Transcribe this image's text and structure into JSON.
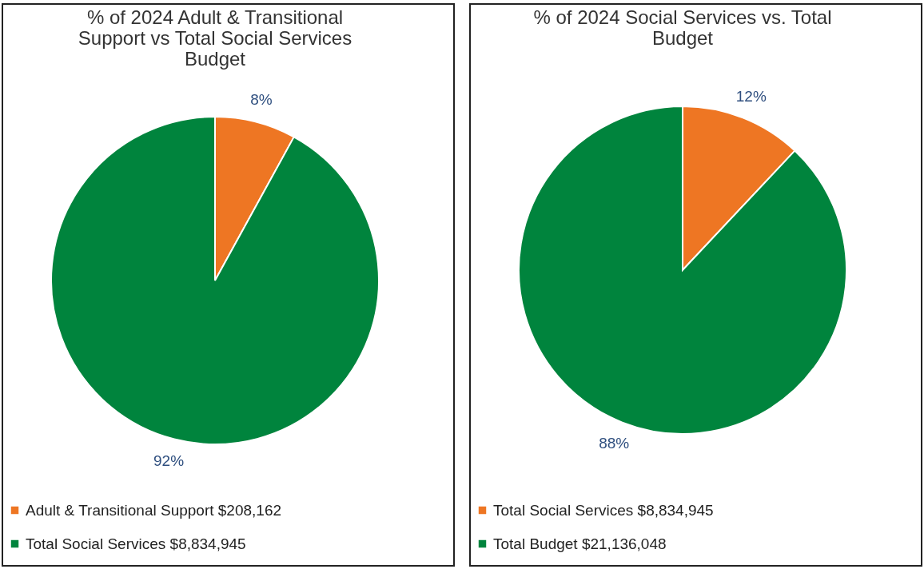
{
  "chart_data": [
    {
      "type": "pie",
      "title": "% of 2024 Adult & Transitional Support vs Total Social Services Budget",
      "categories": [
        "Adult & Transitional Support $208,162",
        "Total Social Services $8,834,945"
      ],
      "values": [
        8,
        92
      ],
      "colors": [
        "#ee7623",
        "#00843d"
      ],
      "value_labels": [
        "8%",
        "92%"
      ],
      "legend": "bottom"
    },
    {
      "type": "pie",
      "title": "% of 2024 Social Services vs. Total Budget",
      "categories": [
        "Total Social Services $8,834,945",
        "Total Budget $21,136,048"
      ],
      "values": [
        12,
        88
      ],
      "colors": [
        "#ee7623",
        "#00843d"
      ],
      "value_labels": [
        "12%",
        "88%"
      ],
      "legend": "bottom"
    }
  ]
}
